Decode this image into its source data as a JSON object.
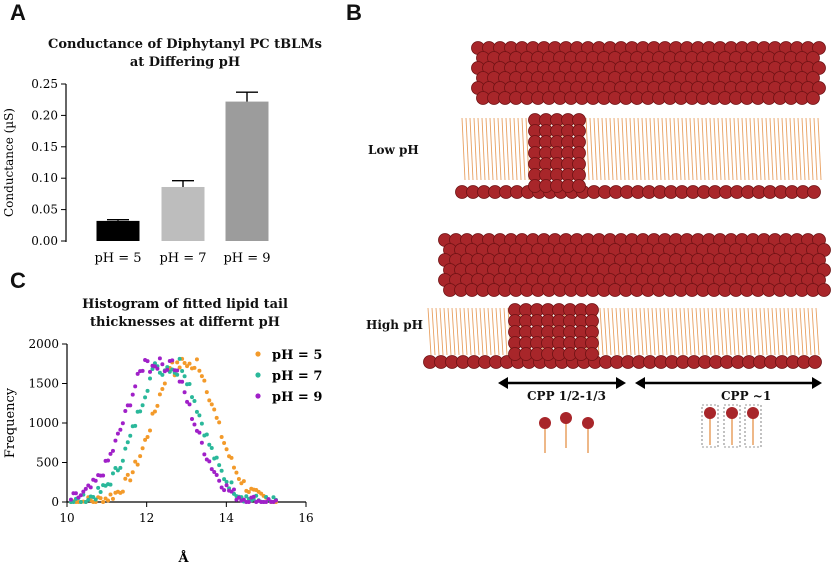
{
  "panels": {
    "a": "A",
    "b": "B",
    "c": "C"
  },
  "chart_data": [
    {
      "type": "bar",
      "title": "Conductance of Diphytanyl PC tBLMs at Differing pH",
      "title_lines": [
        "Conductance of Diphytanyl PC tBLMs",
        "at Differing pH"
      ],
      "ylabel": "Conductance (µS)",
      "xlabel": "",
      "categories": [
        "pH = 5",
        "pH = 7",
        "pH = 9"
      ],
      "values": [
        0.032,
        0.086,
        0.222
      ],
      "errors": [
        0.002,
        0.01,
        0.015
      ],
      "colors": [
        "#000000",
        "#bdbdbd",
        "#9c9c9c"
      ],
      "ylim": [
        0,
        0.25
      ],
      "yticks": [
        "0.00",
        "0.05",
        "0.10",
        "0.15",
        "0.20",
        "0.25"
      ]
    },
    {
      "type": "scatter",
      "title": "Histogram of fitted lipid tail thicknesses at differnt pH",
      "title_lines": [
        "Histogram of fitted lipid tail",
        "thicknesses at differnt pH"
      ],
      "xlabel": "Å",
      "ylabel": "Frequency",
      "xlim": [
        10,
        16
      ],
      "ylim": [
        0,
        2000
      ],
      "xticks": [
        "10",
        "12",
        "14",
        "16"
      ],
      "yticks": [
        "0",
        "500",
        "1000",
        "1500",
        "2000"
      ],
      "legend_position": "top-right",
      "series": [
        {
          "name": "pH = 5",
          "color": "#f39a2a",
          "center": 12.95,
          "sigma": 0.72,
          "peak": 1960
        },
        {
          "name": "pH = 7",
          "color": "#2ab89a",
          "center": 12.55,
          "sigma": 0.74,
          "peak": 1900
        },
        {
          "name": "pH = 9",
          "color": "#a020c8",
          "center": 12.3,
          "sigma": 0.78,
          "peak": 1950
        }
      ]
    }
  ],
  "diagram": {
    "upper_label": "Low pH",
    "lower_label": "High pH",
    "cpp_left": "CPP  1/2-1/3",
    "cpp_right": "CPP  ~1",
    "head_color": "#a8262a",
    "tail_color": "#e8a060"
  }
}
